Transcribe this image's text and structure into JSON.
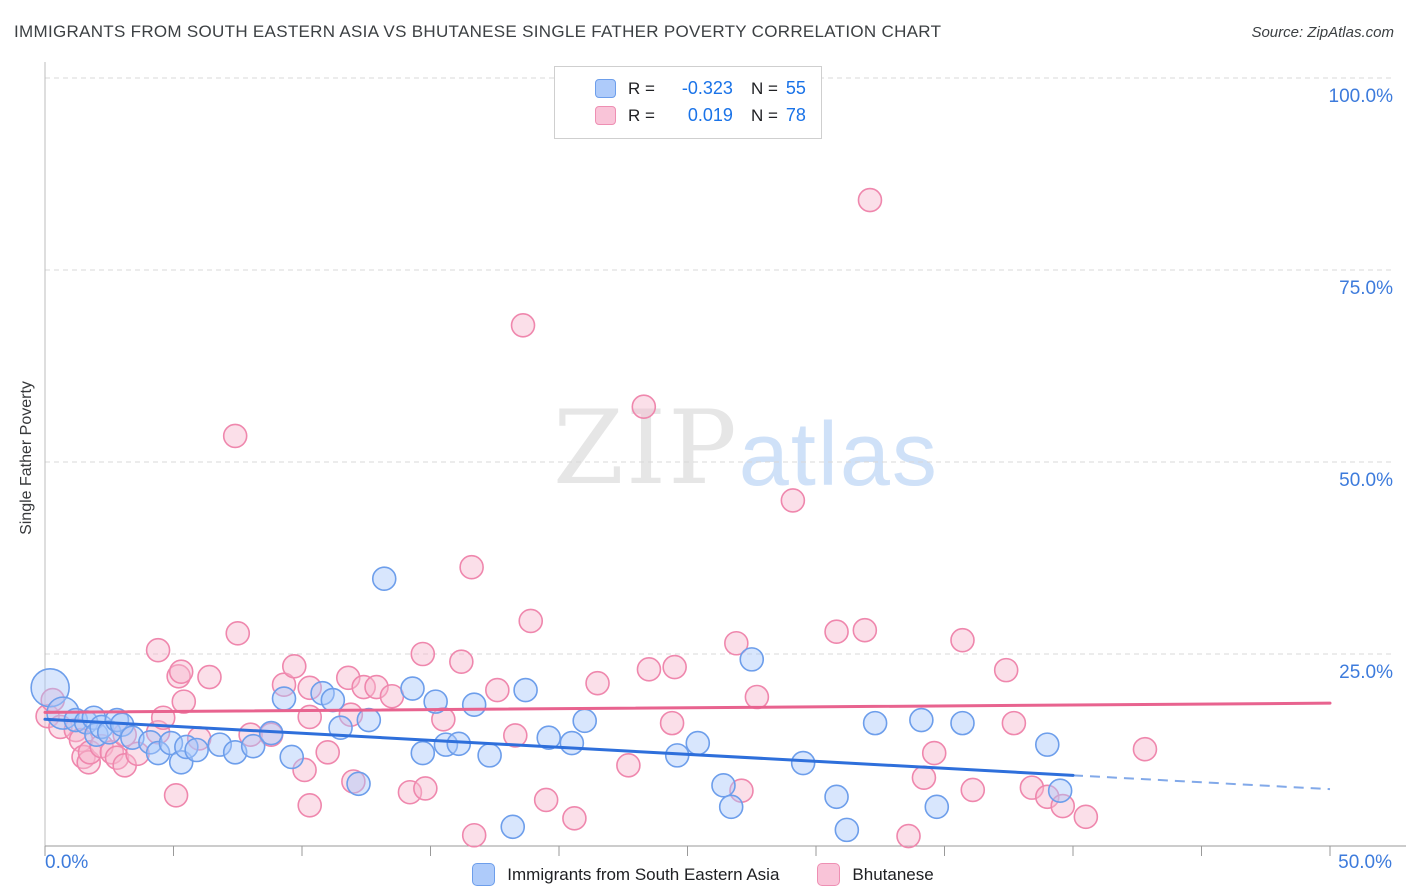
{
  "header": {
    "title": "IMMIGRANTS FROM SOUTH EASTERN ASIA VS BHUTANESE SINGLE FATHER POVERTY CORRELATION CHART",
    "source": "Source: ZipAtlas.com"
  },
  "watermark": {
    "zip": "ZIP",
    "atlas": "atlas"
  },
  "legend_box": {
    "rows": [
      {
        "r_label": "R =",
        "r_value": "-0.323",
        "n_label": "N =",
        "n_value": "55"
      },
      {
        "r_label": "R =",
        "r_value": "0.019",
        "n_label": "N =",
        "n_value": "78"
      }
    ]
  },
  "chart_data": {
    "type": "scatter",
    "title": "IMMIGRANTS FROM SOUTH EASTERN ASIA VS BHUTANESE SINGLE FATHER POVERTY CORRELATION CHART",
    "xlabel": "",
    "ylabel": "Single Father Poverty",
    "x_axis": {
      "min": 0,
      "max": 50,
      "tick_step": 5,
      "label_min": "0.0%",
      "label_max": "50.0%"
    },
    "y_axis": {
      "min": 0,
      "max": 100,
      "gridlines": [
        25,
        50,
        75,
        100
      ],
      "labels": {
        "g100": "100.0%",
        "g75": "75.0%",
        "g50": "50.0%",
        "g25": "25.0%"
      }
    },
    "legend_position": "bottom-center",
    "grid": "horizontal-dashed",
    "series": [
      {
        "name": "Bhutanese",
        "R": 0.019,
        "N": 78,
        "fill": "#f6b8cf",
        "stroke": "#ef87ad",
        "trend": {
          "color": "#e8638f",
          "solid": [
            [
              0,
              17.4
            ],
            [
              50,
              18.6
            ]
          ]
        },
        "points": [
          [
            0.1,
            16.9
          ],
          [
            0.3,
            19.0
          ],
          [
            0.6,
            15.5
          ],
          [
            1.2,
            15.1
          ],
          [
            1.4,
            13.8
          ],
          [
            1.5,
            11.6
          ],
          [
            1.7,
            10.9
          ],
          [
            1.75,
            12.2
          ],
          [
            2.2,
            13.0
          ],
          [
            2.6,
            12.2
          ],
          [
            2.8,
            11.5
          ],
          [
            3.1,
            10.5
          ],
          [
            3.1,
            14.5
          ],
          [
            3.6,
            12.0
          ],
          [
            4.4,
            14.8
          ],
          [
            4.4,
            25.5
          ],
          [
            4.6,
            16.7
          ],
          [
            5.1,
            6.6
          ],
          [
            5.2,
            22.1
          ],
          [
            5.3,
            22.7
          ],
          [
            5.4,
            18.8
          ],
          [
            6.0,
            14.0
          ],
          [
            6.4,
            22.0
          ],
          [
            7.4,
            53.4
          ],
          [
            7.5,
            27.7
          ],
          [
            8.0,
            14.5
          ],
          [
            8.8,
            14.5
          ],
          [
            9.3,
            21.0
          ],
          [
            9.7,
            23.4
          ],
          [
            10.1,
            9.9
          ],
          [
            10.3,
            20.6
          ],
          [
            10.3,
            16.8
          ],
          [
            10.3,
            5.3
          ],
          [
            11.0,
            12.2
          ],
          [
            11.8,
            21.9
          ],
          [
            11.9,
            17.1
          ],
          [
            12.0,
            8.4
          ],
          [
            12.4,
            20.7
          ],
          [
            12.9,
            20.7
          ],
          [
            13.5,
            19.5
          ],
          [
            14.2,
            7.0
          ],
          [
            14.7,
            25.0
          ],
          [
            14.8,
            7.5
          ],
          [
            15.5,
            16.5
          ],
          [
            16.2,
            24.0
          ],
          [
            16.6,
            36.3
          ],
          [
            16.7,
            1.4
          ],
          [
            17.6,
            20.3
          ],
          [
            18.3,
            14.4
          ],
          [
            18.6,
            67.8
          ],
          [
            18.9,
            29.3
          ],
          [
            19.5,
            6.0
          ],
          [
            20.6,
            3.6
          ],
          [
            21.5,
            21.2
          ],
          [
            22.7,
            10.5
          ],
          [
            23.3,
            57.2
          ],
          [
            23.5,
            23.0
          ],
          [
            24.4,
            16.0
          ],
          [
            24.5,
            23.3
          ],
          [
            29.1,
            45.0
          ],
          [
            26.9,
            26.4
          ],
          [
            27.1,
            7.2
          ],
          [
            27.7,
            19.4
          ],
          [
            30.8,
            27.9
          ],
          [
            31.9,
            28.1
          ],
          [
            32.1,
            84.1
          ],
          [
            33.6,
            1.3
          ],
          [
            34.2,
            8.9
          ],
          [
            34.6,
            12.1
          ],
          [
            35.7,
            26.8
          ],
          [
            36.1,
            7.3
          ],
          [
            37.4,
            22.9
          ],
          [
            37.7,
            16.0
          ],
          [
            38.4,
            7.6
          ],
          [
            39.0,
            6.4
          ],
          [
            39.6,
            5.2
          ],
          [
            40.5,
            3.8
          ],
          [
            42.8,
            12.6
          ]
        ]
      },
      {
        "name": "Immigrants from South Eastern Asia",
        "R": -0.323,
        "N": 55,
        "fill": "#a8c7fa",
        "stroke": "#6d9eeb",
        "trend": {
          "color": "#2e6fdb",
          "solid": [
            [
              0,
              16.5
            ],
            [
              40,
              9.2
            ]
          ],
          "dashed": [
            [
              40,
              9.2
            ],
            [
              50,
              7.4
            ]
          ]
        },
        "points": [
          [
            0.2,
            20.6,
            19
          ],
          [
            0.7,
            17.3,
            16
          ],
          [
            1.2,
            16.4
          ],
          [
            1.6,
            16.1
          ],
          [
            1.9,
            16.7
          ],
          [
            2.0,
            14.5
          ],
          [
            2.2,
            15.5
          ],
          [
            2.5,
            14.8
          ],
          [
            2.8,
            16.4
          ],
          [
            3.0,
            15.8
          ],
          [
            3.4,
            14.1
          ],
          [
            4.1,
            13.5
          ],
          [
            4.4,
            12.1
          ],
          [
            4.9,
            13.4
          ],
          [
            5.3,
            10.9
          ],
          [
            5.5,
            12.9
          ],
          [
            5.9,
            12.5
          ],
          [
            6.8,
            13.2
          ],
          [
            7.4,
            12.2
          ],
          [
            8.1,
            13.0
          ],
          [
            8.8,
            14.7
          ],
          [
            9.3,
            19.2
          ],
          [
            9.6,
            11.6
          ],
          [
            10.8,
            19.9
          ],
          [
            11.2,
            19.0
          ],
          [
            11.5,
            15.4
          ],
          [
            12.2,
            8.1
          ],
          [
            12.6,
            16.4
          ],
          [
            13.2,
            34.8
          ],
          [
            14.3,
            20.5
          ],
          [
            14.7,
            12.1
          ],
          [
            15.2,
            18.8
          ],
          [
            15.6,
            13.2
          ],
          [
            16.1,
            13.3
          ],
          [
            16.7,
            18.4
          ],
          [
            17.3,
            11.8
          ],
          [
            18.2,
            2.5
          ],
          [
            18.7,
            20.3
          ],
          [
            19.6,
            14.1
          ],
          [
            20.5,
            13.4
          ],
          [
            21.0,
            16.3
          ],
          [
            24.6,
            11.8
          ],
          [
            25.4,
            13.4
          ],
          [
            26.4,
            7.9
          ],
          [
            26.7,
            5.1
          ],
          [
            27.5,
            24.3
          ],
          [
            29.5,
            10.8
          ],
          [
            30.8,
            6.4
          ],
          [
            31.2,
            2.1
          ],
          [
            32.3,
            16.0
          ],
          [
            34.1,
            16.4
          ],
          [
            34.7,
            5.1
          ],
          [
            35.7,
            16.0
          ],
          [
            39.0,
            13.2
          ],
          [
            39.5,
            7.2
          ]
        ]
      }
    ],
    "colors": {
      "gridline": "#d8d8d8",
      "axis_line": "#9a9a9a",
      "plot_border": "#bdbdbd",
      "tick_label": "#3d7bdc"
    }
  }
}
